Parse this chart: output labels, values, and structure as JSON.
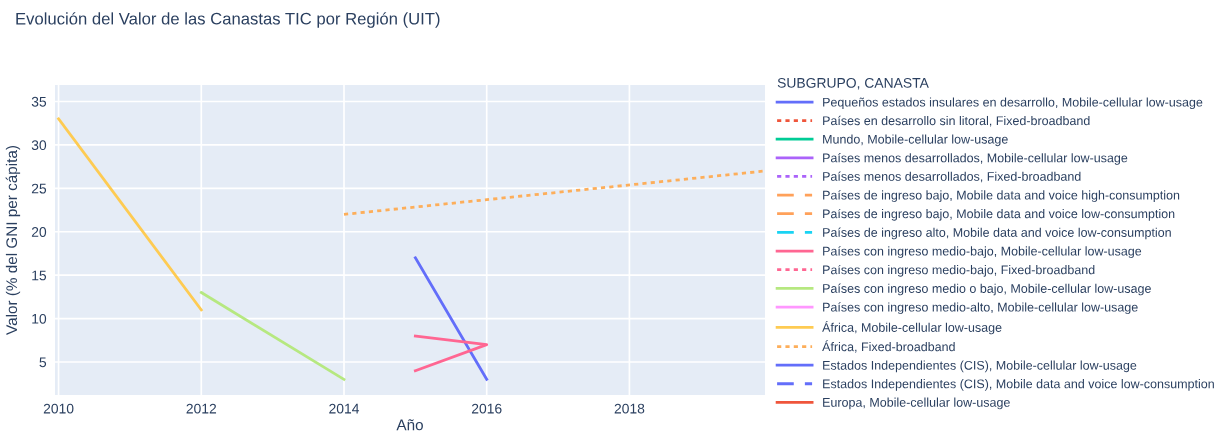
{
  "chart_data": {
    "type": "line",
    "title": "Evolución del Valor de las Canastas TIC por Región (UIT)",
    "xlabel": "Año",
    "ylabel": "Valor (% del GNI per cápita)",
    "legend_title": "SUBGRUPO, CANASTA",
    "xlim": [
      2009.95,
      2019.9
    ],
    "xticks": [
      2010,
      2012,
      2014,
      2016,
      2018
    ],
    "ylim": [
      1.2,
      36.9
    ],
    "yticks": [
      5,
      10,
      15,
      20,
      25,
      30,
      35
    ],
    "grid": true,
    "legend": "right",
    "marker": "none",
    "series": [
      {
        "name": "Pequeños estados insulares en desarrollo, Mobile-cellular low-usage",
        "color": "#636efa",
        "line_style": "solid",
        "x": [
          2015,
          2016
        ],
        "values": [
          17,
          3
        ]
      },
      {
        "name": "Países en desarrollo sin litoral, Fixed-broadband",
        "color": "#ef553b",
        "line_style": "dotted"
      },
      {
        "name": "Mundo, Mobile-cellular low-usage",
        "color": "#00cc96",
        "line_style": "solid"
      },
      {
        "name": "Países menos desarrollados, Mobile-cellular low-usage",
        "color": "#ab63fa",
        "line_style": "solid"
      },
      {
        "name": "Países menos desarrollados, Fixed-broadband",
        "color": "#ab63fa",
        "line_style": "dotted"
      },
      {
        "name": "Países de ingreso bajo, Mobile data and voice high-consumption",
        "color": "#ffa15a",
        "line_style": "dashed"
      },
      {
        "name": "Países de ingreso bajo, Mobile data and voice low-consumption",
        "color": "#ffa15a",
        "line_style": "dashed"
      },
      {
        "name": "Países de ingreso alto, Mobile data and voice low-consumption",
        "color": "#19d3f3",
        "line_style": "dashed"
      },
      {
        "name": "Países con ingreso medio-bajo, Mobile-cellular low-usage",
        "color": "#ff6692",
        "line_style": "solid",
        "x": [
          2015,
          2016,
          2015
        ],
        "values": [
          4,
          7,
          8
        ]
      },
      {
        "name": "Países con ingreso medio-bajo, Fixed-broadband",
        "color": "#ff6692",
        "line_style": "dotted"
      },
      {
        "name": "Países con ingreso medio o bajo, Mobile-cellular low-usage",
        "color": "#b6e880",
        "line_style": "solid",
        "x": [
          2012,
          2014
        ],
        "values": [
          13,
          3
        ]
      },
      {
        "name": "Países con ingreso medio-alto, Mobile-cellular low-usage",
        "color": "#ff97ff",
        "line_style": "solid"
      },
      {
        "name": "África, Mobile-cellular low-usage",
        "color": "#fecb52",
        "line_style": "solid",
        "x": [
          2010,
          2012
        ],
        "values": [
          33,
          11
        ]
      },
      {
        "name": "África, Fixed-broadband",
        "color": "#fdae5a",
        "line_style": "dotted",
        "x": [
          2014,
          2019.9
        ],
        "values": [
          22,
          27
        ]
      },
      {
        "name": "Estados Independientes (CIS), Mobile-cellular low-usage",
        "color": "#636efa",
        "line_style": "solid"
      },
      {
        "name": "Estados Independientes (CIS), Mobile data and voice low-consumption",
        "color": "#636efa",
        "line_style": "dashed"
      },
      {
        "name": "Europa, Mobile-cellular low-usage",
        "color": "#ef553b",
        "line_style": "solid"
      }
    ]
  }
}
